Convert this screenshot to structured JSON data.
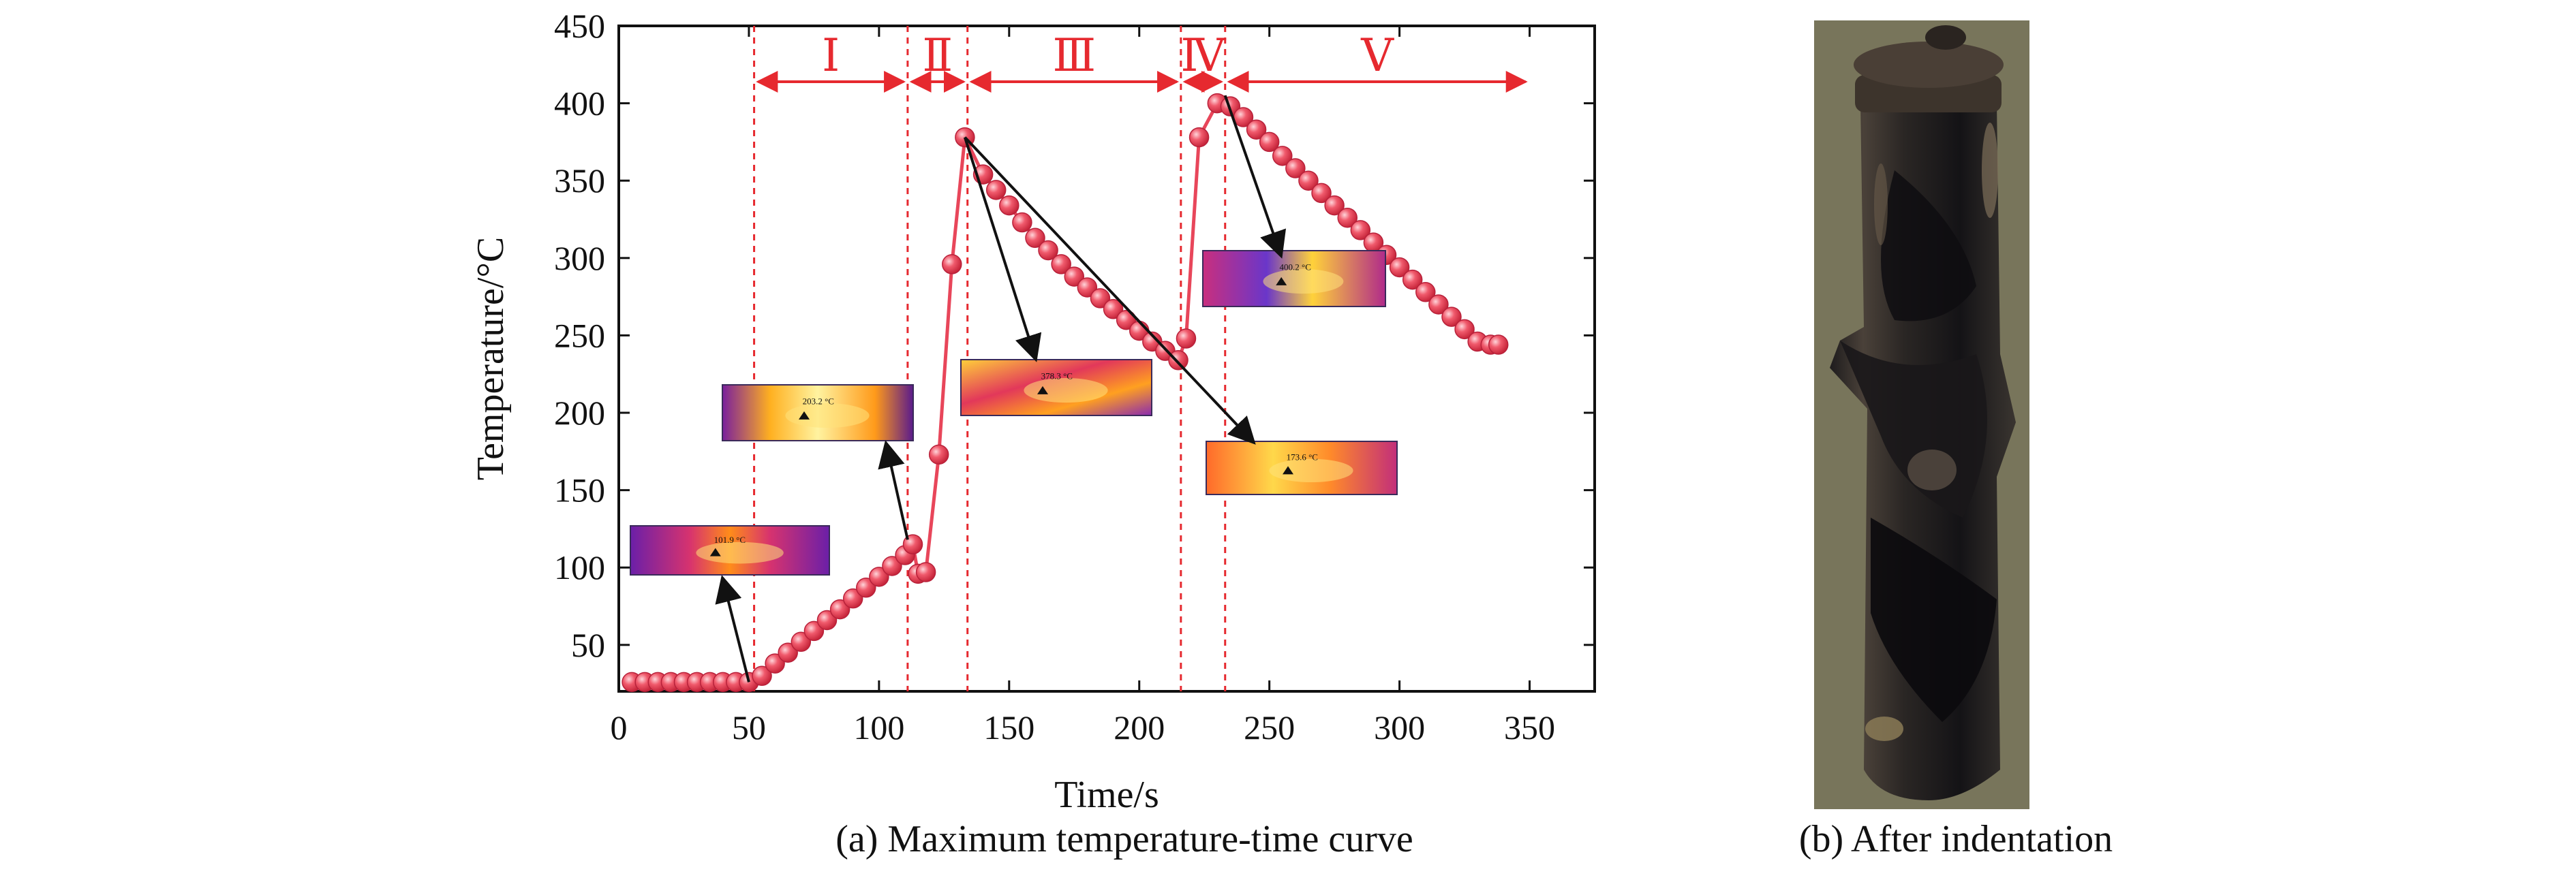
{
  "figure": {
    "caption_a": "(a) Maximum temperature-time curve",
    "caption_b": "(b) After indentation"
  },
  "chart_data": {
    "type": "line",
    "title": "",
    "xlabel": "Time/s",
    "ylabel": "Temperature/°C",
    "xlim": [
      0,
      375
    ],
    "ylim": [
      20,
      450
    ],
    "xticks": [
      0,
      50,
      100,
      150,
      200,
      250,
      300,
      350
    ],
    "yticks": [
      50,
      100,
      150,
      200,
      250,
      300,
      350,
      400,
      450
    ],
    "grid": false,
    "series": [
      {
        "name": "Maximum temperature",
        "color": "#e8465a",
        "x": [
          5,
          10,
          15,
          20,
          25,
          30,
          35,
          40,
          45,
          50,
          55,
          60,
          65,
          70,
          75,
          80,
          85,
          90,
          95,
          100,
          105,
          110,
          113,
          115,
          118,
          123,
          128,
          133,
          140,
          145,
          150,
          155,
          160,
          165,
          170,
          175,
          180,
          185,
          190,
          195,
          200,
          205,
          210,
          215,
          218,
          223,
          230,
          235,
          240,
          245,
          250,
          255,
          260,
          265,
          270,
          275,
          280,
          285,
          290,
          295,
          300,
          305,
          310,
          315,
          320,
          325,
          330,
          335,
          338
        ],
        "y": [
          26,
          26,
          26,
          26,
          26,
          26,
          26,
          26,
          26,
          26,
          30,
          38,
          45,
          52,
          59,
          66,
          73,
          80,
          87,
          94,
          101,
          108,
          115,
          96,
          97,
          173,
          296,
          378,
          354,
          344,
          334,
          323,
          313,
          305,
          296,
          288,
          281,
          274,
          267,
          260,
          253,
          246,
          240,
          234,
          248,
          378,
          400,
          398,
          391,
          383,
          375,
          366,
          358,
          350,
          342,
          334,
          326,
          318,
          310,
          302,
          294,
          286,
          278,
          270,
          262,
          254,
          246,
          244,
          244
        ]
      }
    ],
    "stage_boundaries": [
      52,
      111,
      134,
      216,
      233
    ],
    "stages": [
      {
        "label": "Ⅰ",
        "from": 52,
        "to": 111
      },
      {
        "label": "Ⅱ",
        "from": 111,
        "to": 134
      },
      {
        "label": "Ⅲ",
        "from": 134,
        "to": 216
      },
      {
        "label": "Ⅳ",
        "from": 216,
        "to": 233
      },
      {
        "label": "Ⅴ",
        "from": 233,
        "to": 350
      }
    ],
    "thermal_insets": [
      {
        "name": "thermal-inset-1",
        "readout": "101.9 °C",
        "arrow_to": [
          50,
          26
        ]
      },
      {
        "name": "thermal-inset-2",
        "readout": "203.2 °C",
        "arrow_to": [
          111,
          118
        ]
      },
      {
        "name": "thermal-inset-3",
        "readout": "378.3 °C",
        "arrow_from": [
          133,
          378
        ]
      },
      {
        "name": "thermal-inset-4",
        "readout": "400.2 °C",
        "arrow_from": [
          233,
          405
        ]
      },
      {
        "name": "thermal-inset-5",
        "readout": "173.6 °C",
        "arrow_from": [
          133,
          378
        ]
      }
    ]
  },
  "colors": {
    "series": "#e8465a",
    "stage_lines": "#e6292f",
    "axis": "#111111",
    "photo_dark": "#15151a"
  }
}
